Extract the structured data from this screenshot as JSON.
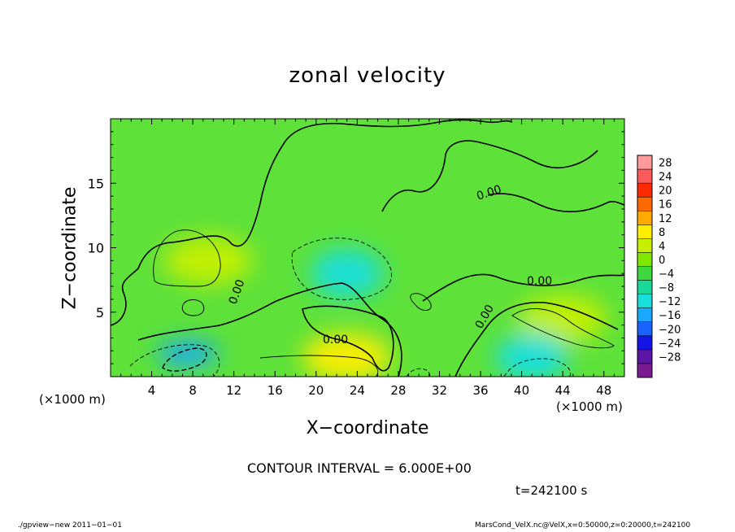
{
  "chart_data": {
    "type": "heatmap",
    "title": "zonal velocity",
    "xlabel": "X−coordinate",
    "ylabel": "Z−coordinate",
    "x_unit": "(×1000 m)",
    "x_ticks": [
      4,
      8,
      12,
      16,
      20,
      24,
      28,
      32,
      36,
      40,
      44,
      48
    ],
    "y_ticks": [
      5,
      10,
      15
    ],
    "xlim": [
      0,
      50
    ],
    "ylim": [
      0,
      20
    ],
    "contour_interval_text": "CONTOUR INTERVAL = 6.000E+00",
    "time_text": "t=242100 s",
    "contour_labels": [
      "0.00",
      "0.00",
      "0.00",
      "0.00",
      "0.00"
    ],
    "colorbar": {
      "levels": [
        28,
        24,
        20,
        16,
        12,
        8,
        4,
        0,
        -4,
        -8,
        -12,
        -16,
        -20,
        -24,
        -28
      ],
      "level_labels": [
        "28",
        "24",
        "20",
        "16",
        "12",
        "8",
        "4",
        "0",
        "−4",
        "−8",
        "−12",
        "−16",
        "−20",
        "−24",
        "−28"
      ],
      "colors": [
        "#ff9a9a",
        "#ff5a5a",
        "#ff2a00",
        "#ff6a00",
        "#ffaa00",
        "#ffee00",
        "#c6f000",
        "#7ee800",
        "#3ed840",
        "#1ad89a",
        "#18dede",
        "#18a8ff",
        "#1862ff",
        "#1414e6",
        "#5a14a8",
        "#7a1a90"
      ],
      "top_label": "28"
    },
    "features": [
      {
        "kind": "positive",
        "x": 9.5,
        "z": 9.0,
        "value": 7,
        "label": "upper-left maximum"
      },
      {
        "kind": "positive",
        "x": 23,
        "z": 1.5,
        "value": 10,
        "label": "lower-center maximum"
      },
      {
        "kind": "positive",
        "x": 44,
        "z": 4.5,
        "value": 8,
        "label": "right maximum"
      },
      {
        "kind": "negative",
        "x": 7.5,
        "z": 1.8,
        "value": -15,
        "label": "lower-left minimum"
      },
      {
        "kind": "negative",
        "x": 23,
        "z": 8.0,
        "value": -8,
        "label": "center minimum"
      },
      {
        "kind": "negative",
        "x": 41,
        "z": 1.5,
        "value": -8,
        "label": "lower-right minimum"
      }
    ]
  },
  "footer": {
    "left": "./gpview−new   2011−01−01",
    "right": "MarsCond_VelX.nc@VelX,x=0:50000,z=0:20000,t=242100"
  }
}
